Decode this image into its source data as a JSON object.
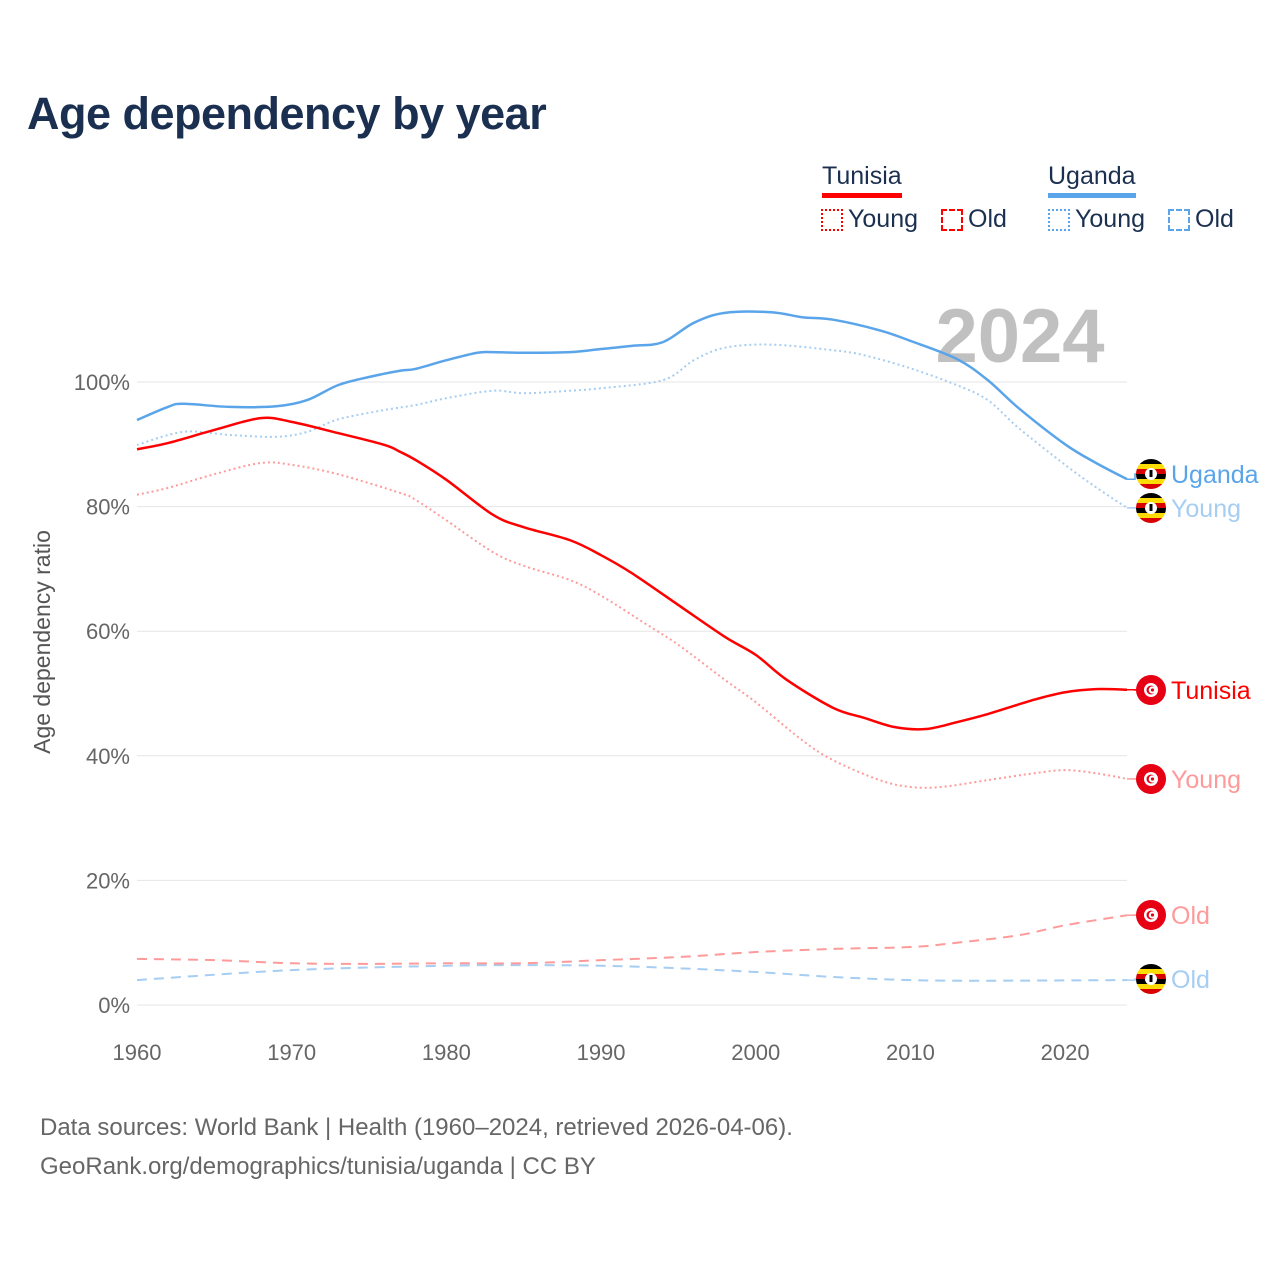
{
  "title": "Age dependency by year",
  "legend": {
    "groups": [
      {
        "country": "Tunisia",
        "color": "#ff0000",
        "items": [
          "Young",
          "Old"
        ]
      },
      {
        "country": "Uganda",
        "color": "#5aa5ea",
        "items": [
          "Young",
          "Old"
        ]
      }
    ]
  },
  "year_badge": "2024",
  "footer": {
    "line1": "Data sources: World Bank | Health (1960–2024, retrieved 2026-04-06).",
    "line2": "GeoRank.org/demographics/tunisia/uganda | CC BY"
  },
  "chart_data": {
    "type": "line",
    "title": "Age dependency by year",
    "xlabel": "",
    "ylabel": "Age dependency ratio",
    "xlim": [
      1960,
      2024
    ],
    "ylim": [
      0,
      110
    ],
    "x_ticks": [
      "1960",
      "1970",
      "1980",
      "1990",
      "2000",
      "2010",
      "2020"
    ],
    "y_ticks": [
      "0%",
      "20%",
      "40%",
      "60%",
      "80%",
      "100%"
    ],
    "grid": true,
    "series": [
      {
        "name": "Uganda",
        "end_label": "Uganda",
        "flag": "uganda",
        "color": "#5aa5ea",
        "style": "solid",
        "x": [
          1960,
          1962,
          1963,
          1966,
          1969,
          1971,
          1973,
          1975,
          1977,
          1978,
          1980,
          1982,
          1983,
          1985,
          1988,
          1990,
          1992,
          1994,
          1996,
          1998,
          2001,
          2003,
          2005,
          2008,
          2010,
          2013,
          2015,
          2017,
          2020,
          2022,
          2024
        ],
        "y": [
          93.9,
          96,
          96.5,
          96,
          96.1,
          97.1,
          99.5,
          100.8,
          101.8,
          102.1,
          103.5,
          104.7,
          104.8,
          104.7,
          104.8,
          105.3,
          105.8,
          106.4,
          109.5,
          111.1,
          111.2,
          110.4,
          110,
          108.3,
          106.6,
          103.7,
          100.3,
          95.8,
          90,
          87,
          84.4
        ]
      },
      {
        "name": "Uganda Young",
        "end_label": "Young",
        "flag": "uganda",
        "color": "#a6cdf2",
        "style": "dotted",
        "x": [
          1960,
          1963,
          1966,
          1969,
          1971,
          1973,
          1976,
          1978,
          1980,
          1983,
          1985,
          1988,
          1990,
          1994,
          1996,
          1998,
          2001,
          2005,
          2007,
          2010,
          2013,
          2015,
          2017,
          2020,
          2022,
          2024
        ],
        "y": [
          89.9,
          92,
          91.5,
          91.2,
          92,
          94,
          95.5,
          96.3,
          97.4,
          98.6,
          98.2,
          98.6,
          99,
          100.3,
          103.5,
          105.5,
          106,
          105.1,
          104.3,
          102.2,
          99.5,
          97.1,
          92.6,
          86.7,
          83.1,
          79.8
        ]
      },
      {
        "name": "Uganda Old",
        "end_label": "Old",
        "flag": "uganda",
        "color": "#a6cdf2",
        "style": "dashed",
        "x": [
          1960,
          1970,
          1980,
          1985,
          1990,
          1995,
          2000,
          2005,
          2010,
          2015,
          2024
        ],
        "y": [
          4.0,
          5.6,
          6.3,
          6.4,
          6.3,
          5.9,
          5.3,
          4.5,
          4.0,
          3.9,
          4.0
        ]
      },
      {
        "name": "Tunisia",
        "end_label": "Tunisia",
        "flag": "tunisia",
        "color": "#ff0000",
        "style": "solid",
        "x": [
          1960,
          1962,
          1965,
          1968,
          1970,
          1973,
          1976,
          1977,
          1978,
          1980,
          1983,
          1985,
          1988,
          1990,
          1992,
          1995,
          1998,
          2000,
          2002,
          2005,
          2007,
          2009,
          2011,
          2013,
          2015,
          2018,
          2020,
          2022,
          2024
        ],
        "y": [
          89.2,
          90.2,
          92.3,
          94.2,
          93.6,
          91.8,
          89.9,
          88.8,
          87.5,
          84.3,
          78.7,
          76.7,
          74.6,
          72.2,
          69.3,
          64.2,
          59.1,
          56.2,
          52.2,
          47.7,
          46.1,
          44.6,
          44.3,
          45.4,
          46.7,
          49,
          50.2,
          50.7,
          50.6
        ]
      },
      {
        "name": "Tunisia Young",
        "end_label": "Young",
        "flag": "tunisia",
        "color": "#ff9a9a",
        "style": "dotted",
        "x": [
          1960,
          1962,
          1965,
          1968,
          1970,
          1973,
          1977,
          1978,
          1980,
          1983,
          1985,
          1988,
          1990,
          1993,
          1995,
          1998,
          2000,
          2003,
          2005,
          2008,
          2010,
          2012,
          2015,
          2018,
          2020,
          2022,
          2024
        ],
        "y": [
          81.9,
          83,
          85.2,
          87,
          86.7,
          85.2,
          82.2,
          81.1,
          77.8,
          72.7,
          70.5,
          68.2,
          65.7,
          61,
          57.8,
          52.2,
          48.6,
          42.5,
          39.3,
          36.1,
          35,
          35,
          36.1,
          37.2,
          37.7,
          37.2,
          36.3
        ]
      },
      {
        "name": "Tunisia Old",
        "end_label": "Old",
        "flag": "tunisia",
        "color": "#ff9a9a",
        "style": "dashed",
        "x": [
          1960,
          1965,
          1970,
          1975,
          1980,
          1985,
          1990,
          1995,
          2000,
          2005,
          2010,
          2013,
          2017,
          2020,
          2024
        ],
        "y": [
          7.4,
          7.2,
          6.7,
          6.6,
          6.7,
          6.7,
          7.2,
          7.7,
          8.5,
          9.0,
          9.3,
          10,
          11.2,
          12.8,
          14.4
        ]
      }
    ]
  }
}
